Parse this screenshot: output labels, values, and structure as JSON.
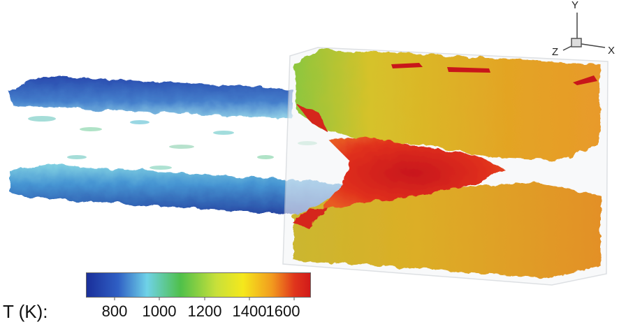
{
  "axes": {
    "y": "Y",
    "z": "Z",
    "x": "X"
  },
  "colorbar": {
    "title": "T (K):",
    "ticks": [
      "800",
      "1000",
      "1200",
      "1400",
      "1600"
    ],
    "colors": [
      "#1a2f9a",
      "#3b8fd6",
      "#6fd2e8",
      "#4fc04a",
      "#c8e03a",
      "#f5e81c",
      "#f29a1e",
      "#e0351c",
      "#d11a1a"
    ]
  }
}
